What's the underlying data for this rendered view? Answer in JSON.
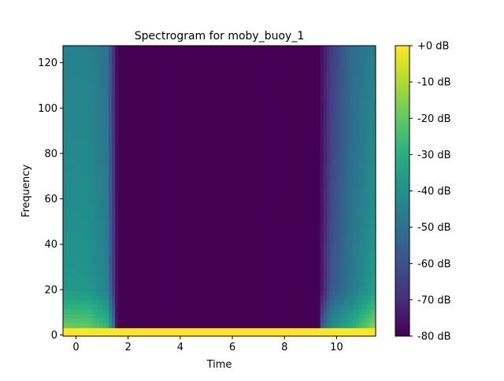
{
  "chart_data": {
    "type": "heatmap",
    "title": "Spectrogram for moby_buoy_1",
    "xlabel": "Time",
    "ylabel": "Frequency",
    "xlim": [
      -0.5,
      11.5
    ],
    "ylim": [
      -0.5,
      127.5
    ],
    "x_ticks": [
      0,
      2,
      4,
      6,
      8,
      10
    ],
    "y_ticks": [
      0,
      20,
      40,
      60,
      80,
      100,
      120
    ],
    "colormap": "viridis",
    "colorbar": {
      "ticks": [
        0,
        -10,
        -20,
        -30,
        -40,
        -50,
        -60,
        -70,
        -80
      ],
      "tick_labels": [
        "+0 dB",
        "-10 dB",
        "-20 dB",
        "-30 dB",
        "-40 dB",
        "-50 dB",
        "-60 dB",
        "-70 dB",
        "-80 dB"
      ],
      "range": [
        -80,
        0
      ]
    },
    "time_columns": [
      {
        "t": -0.5,
        "low_db": -28,
        "high_db": -45
      },
      {
        "t": 0.5,
        "low_db": -30,
        "high_db": -45
      },
      {
        "t": 1.2,
        "low_db": -38,
        "high_db": -50
      },
      {
        "t": 1.6,
        "low_db": -80,
        "high_db": -80
      },
      {
        "t": 9.3,
        "low_db": -80,
        "high_db": -80
      },
      {
        "t": 9.8,
        "low_db": -50,
        "high_db": -66
      },
      {
        "t": 10.6,
        "low_db": -42,
        "high_db": -52
      },
      {
        "t": 11.5,
        "low_db": -22,
        "high_db": -45
      }
    ],
    "bottom_band": {
      "freq_max": 3,
      "db": 0
    }
  }
}
